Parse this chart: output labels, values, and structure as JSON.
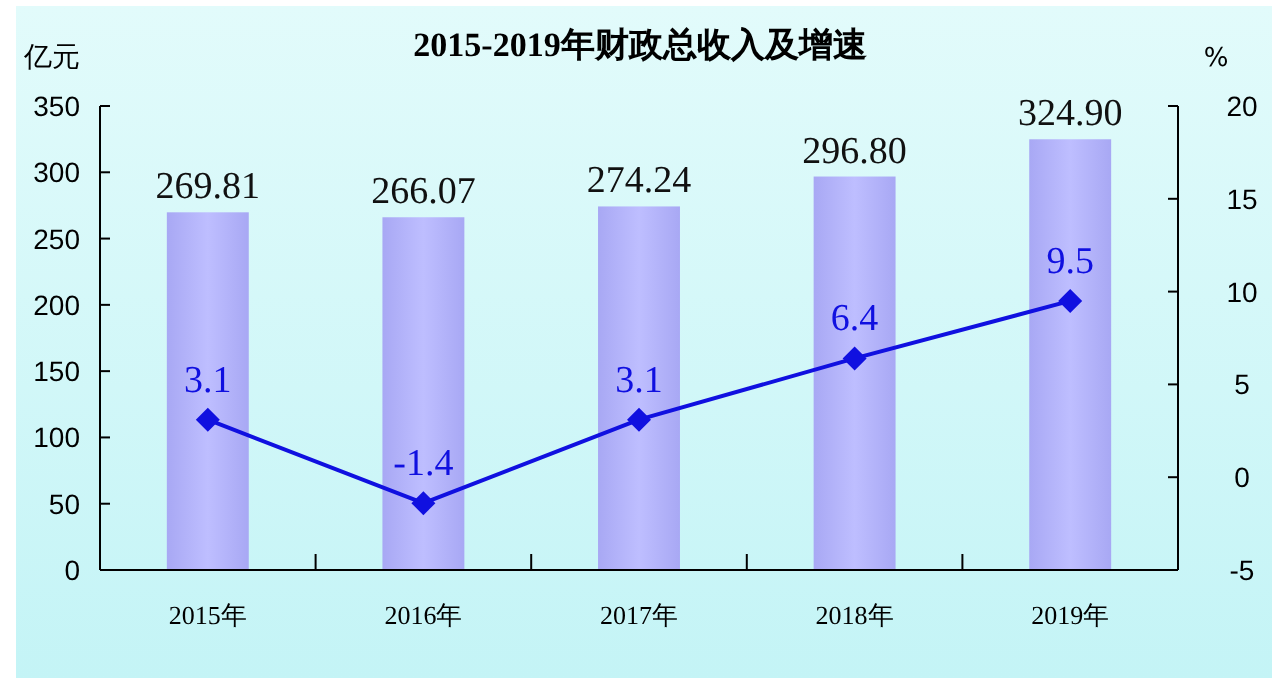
{
  "chart_data": {
    "type": "bar",
    "title": "2015-2019年财政总收入及增速",
    "ylabel": "亿元",
    "y2label": "%",
    "categories": [
      "2015年",
      "2016年",
      "2017年",
      "2018年",
      "2019年"
    ],
    "series": [
      {
        "color": "#a8a8f4",
        "values": [
          269.81,
          266.07,
          274.24,
          296.8,
          324.9
        ],
        "value_labels": [
          "269.81",
          "266.07",
          "274.24",
          "296.80",
          "324.90"
        ]
      },
      {
        "type": "line",
        "axis": "y2",
        "color": "#1010e0",
        "values": [
          3.1,
          -1.4,
          3.1,
          6.4,
          9.5
        ],
        "value_labels": [
          "3.1",
          "-1.4",
          "3.1",
          "6.4",
          "9.5"
        ],
        "marker": "diamond"
      }
    ],
    "ylim": [
      0,
      350
    ],
    "yticks": [
      0,
      50,
      100,
      150,
      200,
      250,
      300,
      350
    ],
    "y2lim": [
      -5,
      20
    ],
    "y2ticks": [
      -5,
      0,
      5,
      10,
      15,
      20
    ],
    "grid": false
  }
}
